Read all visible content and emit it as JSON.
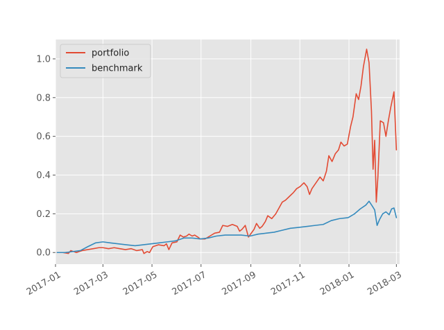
{
  "chart_data": {
    "type": "line",
    "title": "",
    "xlabel": "",
    "ylabel": "",
    "style": "ggplot",
    "grid": true,
    "legend_placement": "upper-left",
    "x_type": "date",
    "xlim": [
      "2017-01-01",
      "2018-03-05"
    ],
    "ylim": [
      -0.06,
      1.1
    ],
    "x_ticks": [
      {
        "value": "2017-01-01",
        "label": "2017-01"
      },
      {
        "value": "2017-03-01",
        "label": "2017-03"
      },
      {
        "value": "2017-05-01",
        "label": "2017-05"
      },
      {
        "value": "2017-07-01",
        "label": "2017-07"
      },
      {
        "value": "2017-09-01",
        "label": "2017-09"
      },
      {
        "value": "2017-11-01",
        "label": "2017-11"
      },
      {
        "value": "2018-01-01",
        "label": "2018-01"
      },
      {
        "value": "2018-03-01",
        "label": "2018-03"
      }
    ],
    "y_ticks": [
      {
        "value": 0.0,
        "label": "0.0"
      },
      {
        "value": 0.2,
        "label": "0.2"
      },
      {
        "value": 0.4,
        "label": "0.4"
      },
      {
        "value": 0.6,
        "label": "0.6"
      },
      {
        "value": 0.8,
        "label": "0.8"
      },
      {
        "value": 1.0,
        "label": "1.0"
      }
    ],
    "series": [
      {
        "name": "portfolio",
        "color": "#E24A33",
        "points": [
          [
            "2017-01-03",
            0.0
          ],
          [
            "2017-01-10",
            0.0
          ],
          [
            "2017-01-17",
            -0.005
          ],
          [
            "2017-01-20",
            0.01
          ],
          [
            "2017-01-27",
            0.0
          ],
          [
            "2017-02-03",
            0.01
          ],
          [
            "2017-02-10",
            0.015
          ],
          [
            "2017-02-17",
            0.02
          ],
          [
            "2017-02-24",
            0.025
          ],
          [
            "2017-03-01",
            0.025
          ],
          [
            "2017-03-08",
            0.02
          ],
          [
            "2017-03-15",
            0.025
          ],
          [
            "2017-03-22",
            0.02
          ],
          [
            "2017-03-29",
            0.015
          ],
          [
            "2017-04-05",
            0.02
          ],
          [
            "2017-04-12",
            0.01
          ],
          [
            "2017-04-19",
            0.015
          ],
          [
            "2017-04-21",
            -0.005
          ],
          [
            "2017-04-25",
            0.005
          ],
          [
            "2017-04-28",
            0.0
          ],
          [
            "2017-05-02",
            0.03
          ],
          [
            "2017-05-09",
            0.04
          ],
          [
            "2017-05-16",
            0.035
          ],
          [
            "2017-05-19",
            0.045
          ],
          [
            "2017-05-22",
            0.015
          ],
          [
            "2017-05-26",
            0.05
          ],
          [
            "2017-06-01",
            0.055
          ],
          [
            "2017-06-05",
            0.09
          ],
          [
            "2017-06-09",
            0.08
          ],
          [
            "2017-06-13",
            0.085
          ],
          [
            "2017-06-16",
            0.095
          ],
          [
            "2017-06-20",
            0.085
          ],
          [
            "2017-06-23",
            0.09
          ],
          [
            "2017-06-27",
            0.08
          ],
          [
            "2017-06-30",
            0.07
          ],
          [
            "2017-07-06",
            0.07
          ],
          [
            "2017-07-12",
            0.085
          ],
          [
            "2017-07-18",
            0.1
          ],
          [
            "2017-07-24",
            0.105
          ],
          [
            "2017-07-28",
            0.14
          ],
          [
            "2017-08-03",
            0.135
          ],
          [
            "2017-08-09",
            0.145
          ],
          [
            "2017-08-15",
            0.135
          ],
          [
            "2017-08-18",
            0.11
          ],
          [
            "2017-08-21",
            0.12
          ],
          [
            "2017-08-25",
            0.14
          ],
          [
            "2017-08-29",
            0.08
          ],
          [
            "2017-09-05",
            0.12
          ],
          [
            "2017-09-08",
            0.15
          ],
          [
            "2017-09-12",
            0.125
          ],
          [
            "2017-09-15",
            0.135
          ],
          [
            "2017-09-19",
            0.16
          ],
          [
            "2017-09-22",
            0.19
          ],
          [
            "2017-09-27",
            0.175
          ],
          [
            "2017-10-02",
            0.2
          ],
          [
            "2017-10-06",
            0.23
          ],
          [
            "2017-10-10",
            0.26
          ],
          [
            "2017-10-14",
            0.27
          ],
          [
            "2017-10-19",
            0.29
          ],
          [
            "2017-10-24",
            0.31
          ],
          [
            "2017-10-28",
            0.33
          ],
          [
            "2017-11-01",
            0.34
          ],
          [
            "2017-11-06",
            0.36
          ],
          [
            "2017-11-10",
            0.34
          ],
          [
            "2017-11-13",
            0.3
          ],
          [
            "2017-11-16",
            0.33
          ],
          [
            "2017-11-21",
            0.36
          ],
          [
            "2017-11-26",
            0.39
          ],
          [
            "2017-11-30",
            0.37
          ],
          [
            "2017-12-04",
            0.42
          ],
          [
            "2017-12-07",
            0.5
          ],
          [
            "2017-12-11",
            0.47
          ],
          [
            "2017-12-15",
            0.51
          ],
          [
            "2017-12-19",
            0.53
          ],
          [
            "2017-12-22",
            0.57
          ],
          [
            "2017-12-26",
            0.55
          ],
          [
            "2017-12-30",
            0.56
          ],
          [
            "2018-01-03",
            0.65
          ],
          [
            "2018-01-06",
            0.7
          ],
          [
            "2018-01-10",
            0.82
          ],
          [
            "2018-01-13",
            0.79
          ],
          [
            "2018-01-16",
            0.86
          ],
          [
            "2018-01-19",
            0.96
          ],
          [
            "2018-01-23",
            1.05
          ],
          [
            "2018-01-26",
            0.98
          ],
          [
            "2018-01-29",
            0.73
          ],
          [
            "2018-01-31",
            0.43
          ],
          [
            "2018-02-02",
            0.58
          ],
          [
            "2018-02-04",
            0.26
          ],
          [
            "2018-02-06",
            0.39
          ],
          [
            "2018-02-09",
            0.68
          ],
          [
            "2018-02-13",
            0.67
          ],
          [
            "2018-02-16",
            0.6
          ],
          [
            "2018-02-19",
            0.68
          ],
          [
            "2018-02-22",
            0.75
          ],
          [
            "2018-02-26",
            0.83
          ],
          [
            "2018-03-01",
            0.53
          ]
        ]
      },
      {
        "name": "benchmark",
        "color": "#348ABD",
        "points": [
          [
            "2017-01-03",
            0.0
          ],
          [
            "2017-01-13",
            0.0
          ],
          [
            "2017-01-23",
            0.005
          ],
          [
            "2017-02-01",
            0.01
          ],
          [
            "2017-02-10",
            0.03
          ],
          [
            "2017-02-20",
            0.05
          ],
          [
            "2017-03-01",
            0.055
          ],
          [
            "2017-03-10",
            0.05
          ],
          [
            "2017-03-20",
            0.045
          ],
          [
            "2017-03-30",
            0.04
          ],
          [
            "2017-04-10",
            0.035
          ],
          [
            "2017-04-20",
            0.04
          ],
          [
            "2017-04-30",
            0.045
          ],
          [
            "2017-05-10",
            0.05
          ],
          [
            "2017-05-20",
            0.055
          ],
          [
            "2017-05-30",
            0.06
          ],
          [
            "2017-06-10",
            0.075
          ],
          [
            "2017-06-20",
            0.075
          ],
          [
            "2017-06-30",
            0.07
          ],
          [
            "2017-07-10",
            0.075
          ],
          [
            "2017-07-20",
            0.085
          ],
          [
            "2017-07-31",
            0.09
          ],
          [
            "2017-08-10",
            0.09
          ],
          [
            "2017-08-20",
            0.09
          ],
          [
            "2017-08-31",
            0.085
          ],
          [
            "2017-09-10",
            0.095
          ],
          [
            "2017-09-20",
            0.1
          ],
          [
            "2017-09-30",
            0.105
          ],
          [
            "2017-10-10",
            0.115
          ],
          [
            "2017-10-20",
            0.125
          ],
          [
            "2017-10-31",
            0.13
          ],
          [
            "2017-11-10",
            0.135
          ],
          [
            "2017-11-20",
            0.14
          ],
          [
            "2017-11-30",
            0.145
          ],
          [
            "2017-12-10",
            0.165
          ],
          [
            "2017-12-20",
            0.175
          ],
          [
            "2017-12-31",
            0.18
          ],
          [
            "2018-01-08",
            0.2
          ],
          [
            "2018-01-15",
            0.225
          ],
          [
            "2018-01-22",
            0.245
          ],
          [
            "2018-01-26",
            0.265
          ],
          [
            "2018-01-30",
            0.24
          ],
          [
            "2018-02-02",
            0.22
          ],
          [
            "2018-02-05",
            0.14
          ],
          [
            "2018-02-08",
            0.17
          ],
          [
            "2018-02-12",
            0.2
          ],
          [
            "2018-02-16",
            0.21
          ],
          [
            "2018-02-20",
            0.195
          ],
          [
            "2018-02-23",
            0.225
          ],
          [
            "2018-02-26",
            0.23
          ],
          [
            "2018-03-01",
            0.18
          ]
        ]
      }
    ]
  }
}
